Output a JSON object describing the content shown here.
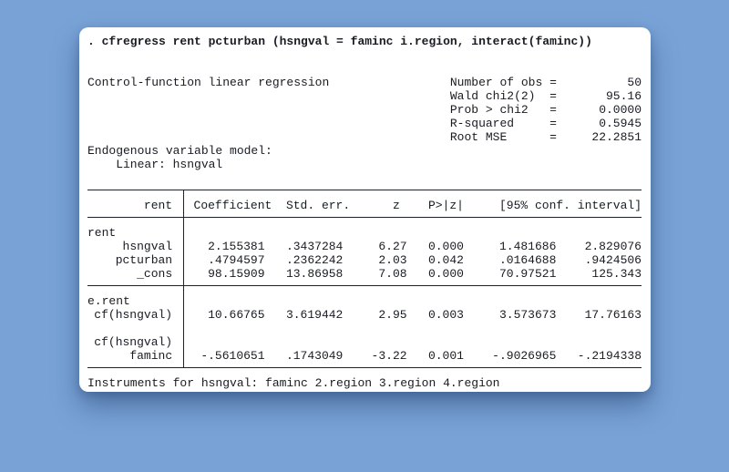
{
  "colors": {
    "background": "#79a3d7",
    "card": "#ffffff",
    "text": "#191b22",
    "rule": "#20222a"
  },
  "command": ". cfregress rent pcturban (hsngval = faminc i.region, interact(faminc))",
  "summary": {
    "title": "Control-function linear regression",
    "stats": [
      {
        "label": "Number of obs",
        "eq": "=",
        "value": "50"
      },
      {
        "label": "Wald chi2(2)",
        "eq": "=",
        "value": "95.16"
      },
      {
        "label": "Prob > chi2",
        "eq": "=",
        "value": "0.0000"
      },
      {
        "label": "R-squared",
        "eq": "=",
        "value": "0.5945"
      },
      {
        "label": "Root MSE",
        "eq": "=",
        "value": "22.2851"
      }
    ]
  },
  "endogenous": {
    "heading": "Endogenous variable model:",
    "detail": "Linear: hsngval"
  },
  "table": {
    "depvar": "rent",
    "headers": {
      "coef": "Coefficient",
      "se": "Std. err.",
      "z": "z",
      "p": "P>|z|",
      "ci": "[95% conf. interval]"
    },
    "eq1": {
      "name": "rent",
      "rows": [
        {
          "label": "hsngval",
          "coef": "2.155381",
          "se": ".3437284",
          "z": "6.27",
          "p": "0.000",
          "lo": "1.481686",
          "hi": "2.829076"
        },
        {
          "label": "pcturban",
          "coef": ".4794597",
          "se": ".2362242",
          "z": "2.03",
          "p": "0.042",
          "lo": ".0164688",
          "hi": ".9424506"
        },
        {
          "label": "_cons",
          "coef": "98.15909",
          "se": "13.86958",
          "z": "7.08",
          "p": "0.000",
          "lo": "70.97521",
          "hi": "125.343"
        }
      ]
    },
    "eq2": {
      "name": "e.rent",
      "row_cf": {
        "label": "cf(hsngval)",
        "coef": "10.66765",
        "se": "3.619442",
        "z": "2.95",
        "p": "0.003",
        "lo": "3.573673",
        "hi": "17.76163"
      },
      "subheading": "cf(hsngval)",
      "row_faminc": {
        "label": "faminc",
        "coef": "-.5610651",
        "se": ".1743049",
        "z": "-3.22",
        "p": "0.001",
        "lo": "-.9026965",
        "hi": "-.2194338"
      }
    }
  },
  "footer": "Instruments for hsngval: faminc 2.region 3.region 4.region"
}
